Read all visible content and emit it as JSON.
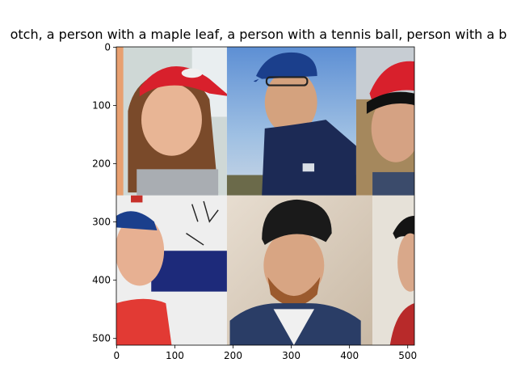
{
  "chart_data": {
    "type": "image",
    "title": "otch,  a person with a maple leaf, a person with a tennis ball, person with a b",
    "xlabel": "",
    "ylabel": "",
    "xlim": [
      0,
      512
    ],
    "ylim": [
      512,
      0
    ],
    "xticks": [
      0,
      100,
      200,
      300,
      400,
      500
    ],
    "yticks": [
      0,
      100,
      200,
      300,
      400,
      500
    ],
    "grid": false,
    "image_description": "2x2-ish grid of AI-generated portrait photos: woman in red cap, man in blue cap with glasses, man in red cap, woman in blue cap, bearded man in black cap, partial person on right",
    "colors": {
      "red_cap": "#d8202c",
      "blue_cap": "#1b3f8c",
      "sky": "#8fb6dd",
      "navy_shirt": "#1c2a55"
    }
  }
}
